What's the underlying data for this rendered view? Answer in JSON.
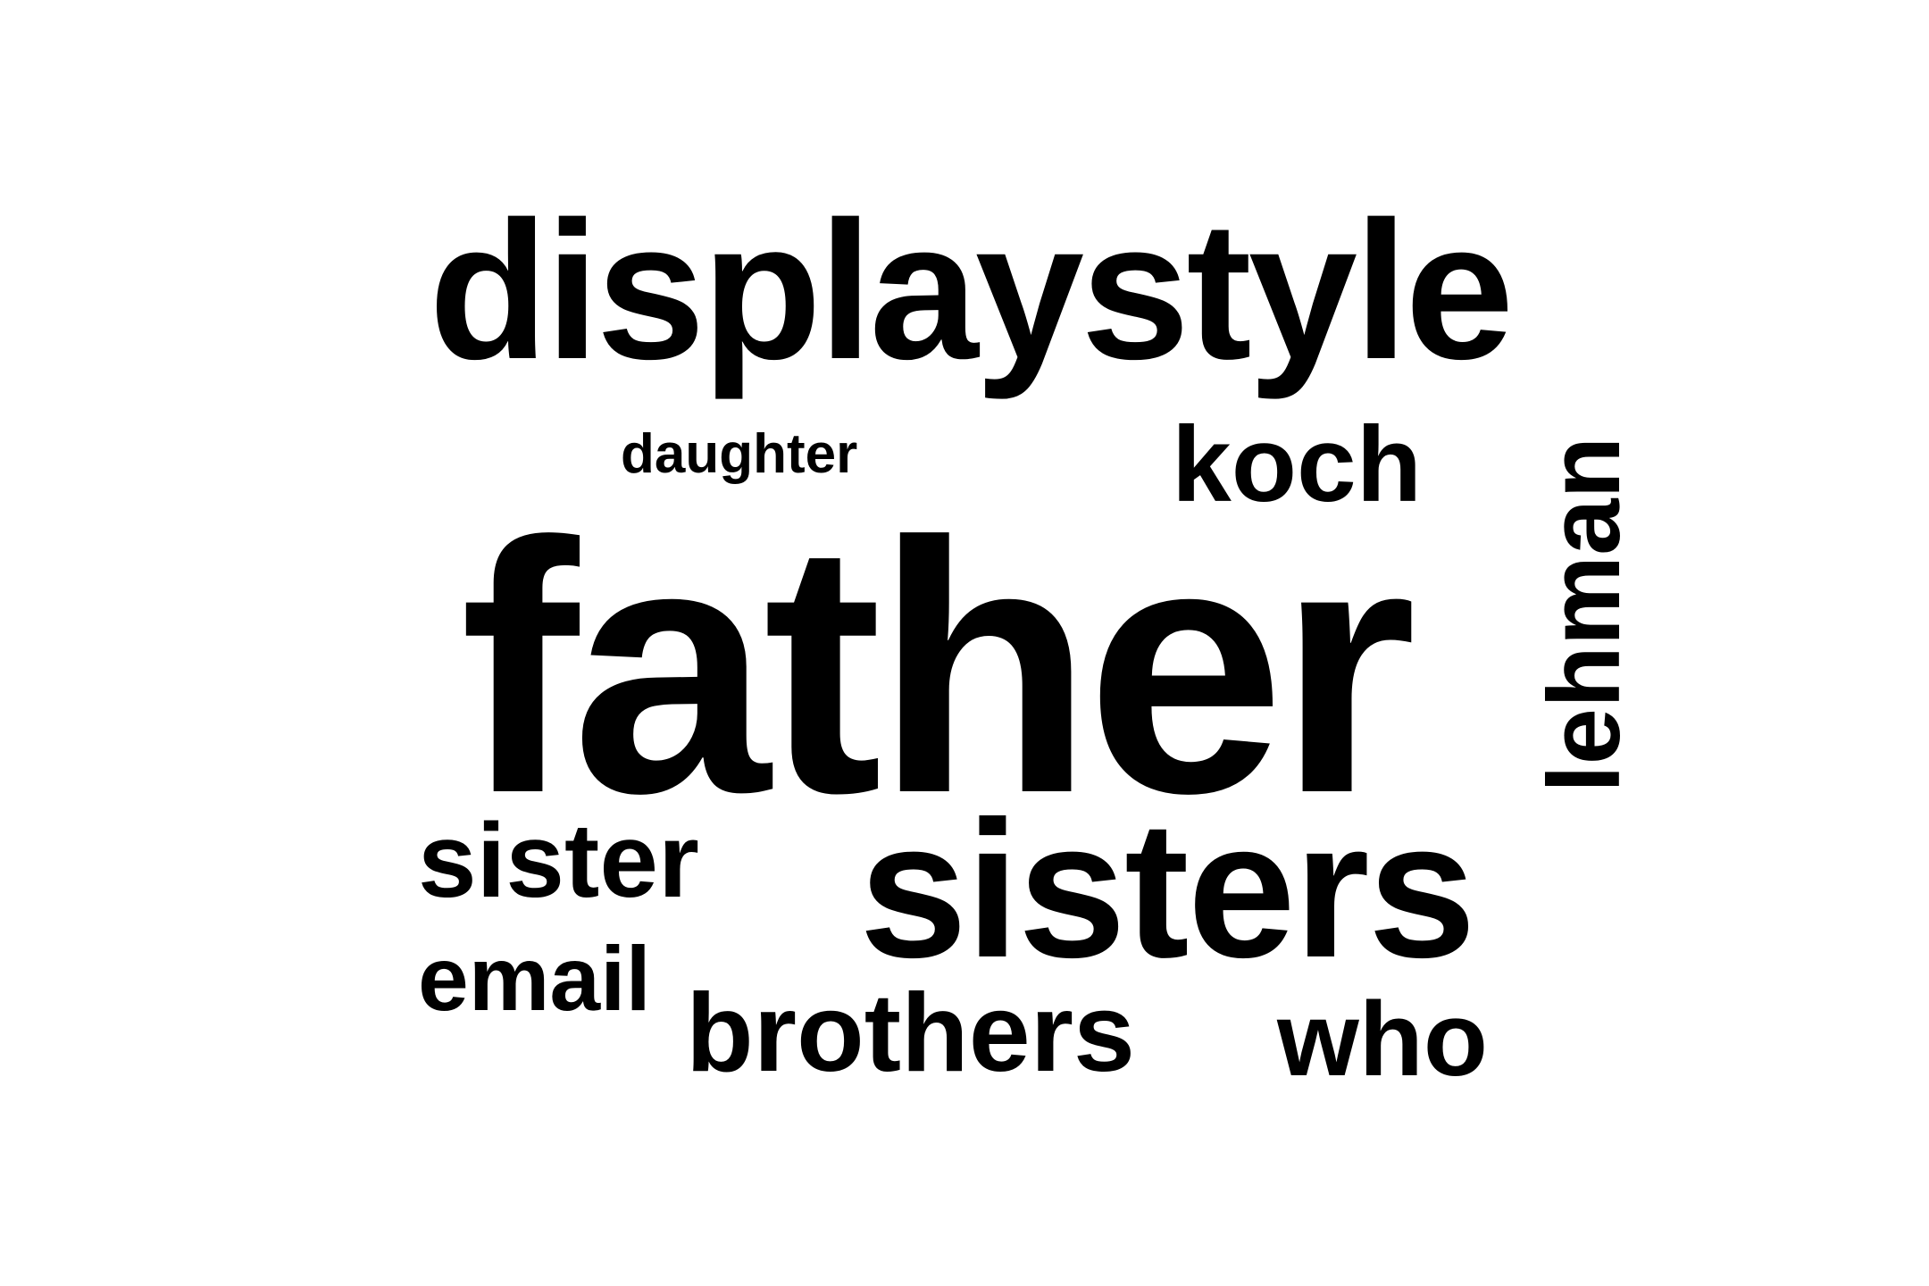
{
  "cloud": {
    "words": [
      {
        "key": "displaystyle",
        "text": "displaystyle"
      },
      {
        "key": "daughter",
        "text": "daughter"
      },
      {
        "key": "koch",
        "text": "koch"
      },
      {
        "key": "lehman",
        "text": "lehman"
      },
      {
        "key": "father",
        "text": "father"
      },
      {
        "key": "sister",
        "text": "sister"
      },
      {
        "key": "sisters",
        "text": "sisters"
      },
      {
        "key": "email",
        "text": "email"
      },
      {
        "key": "brothers",
        "text": "brothers"
      },
      {
        "key": "who",
        "text": "who"
      }
    ],
    "color": "#000000",
    "background": "#ffffff"
  }
}
